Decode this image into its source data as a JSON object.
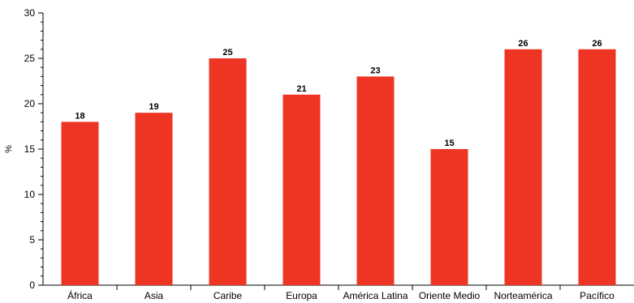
{
  "chart_data": {
    "type": "bar",
    "categories": [
      "África",
      "Asia",
      "Caribe",
      "Europa",
      "América Latina",
      "Oriente Medio",
      "Norteamérica",
      "Pacífico"
    ],
    "values": [
      18,
      19,
      25,
      21,
      23,
      15,
      26,
      26
    ],
    "data_labels": [
      "18",
      "19",
      "25",
      "21",
      "23",
      "15",
      "26",
      "26"
    ],
    "xlabel": "",
    "ylabel": "%",
    "ylim": [
      0,
      30
    ],
    "yticks": [
      0,
      5,
      10,
      15,
      20,
      25,
      30
    ],
    "ytick_labels": [
      "0",
      "5",
      "10",
      "15",
      "20",
      "25",
      "30"
    ],
    "grid": false,
    "bar_color": "#ee3524"
  }
}
